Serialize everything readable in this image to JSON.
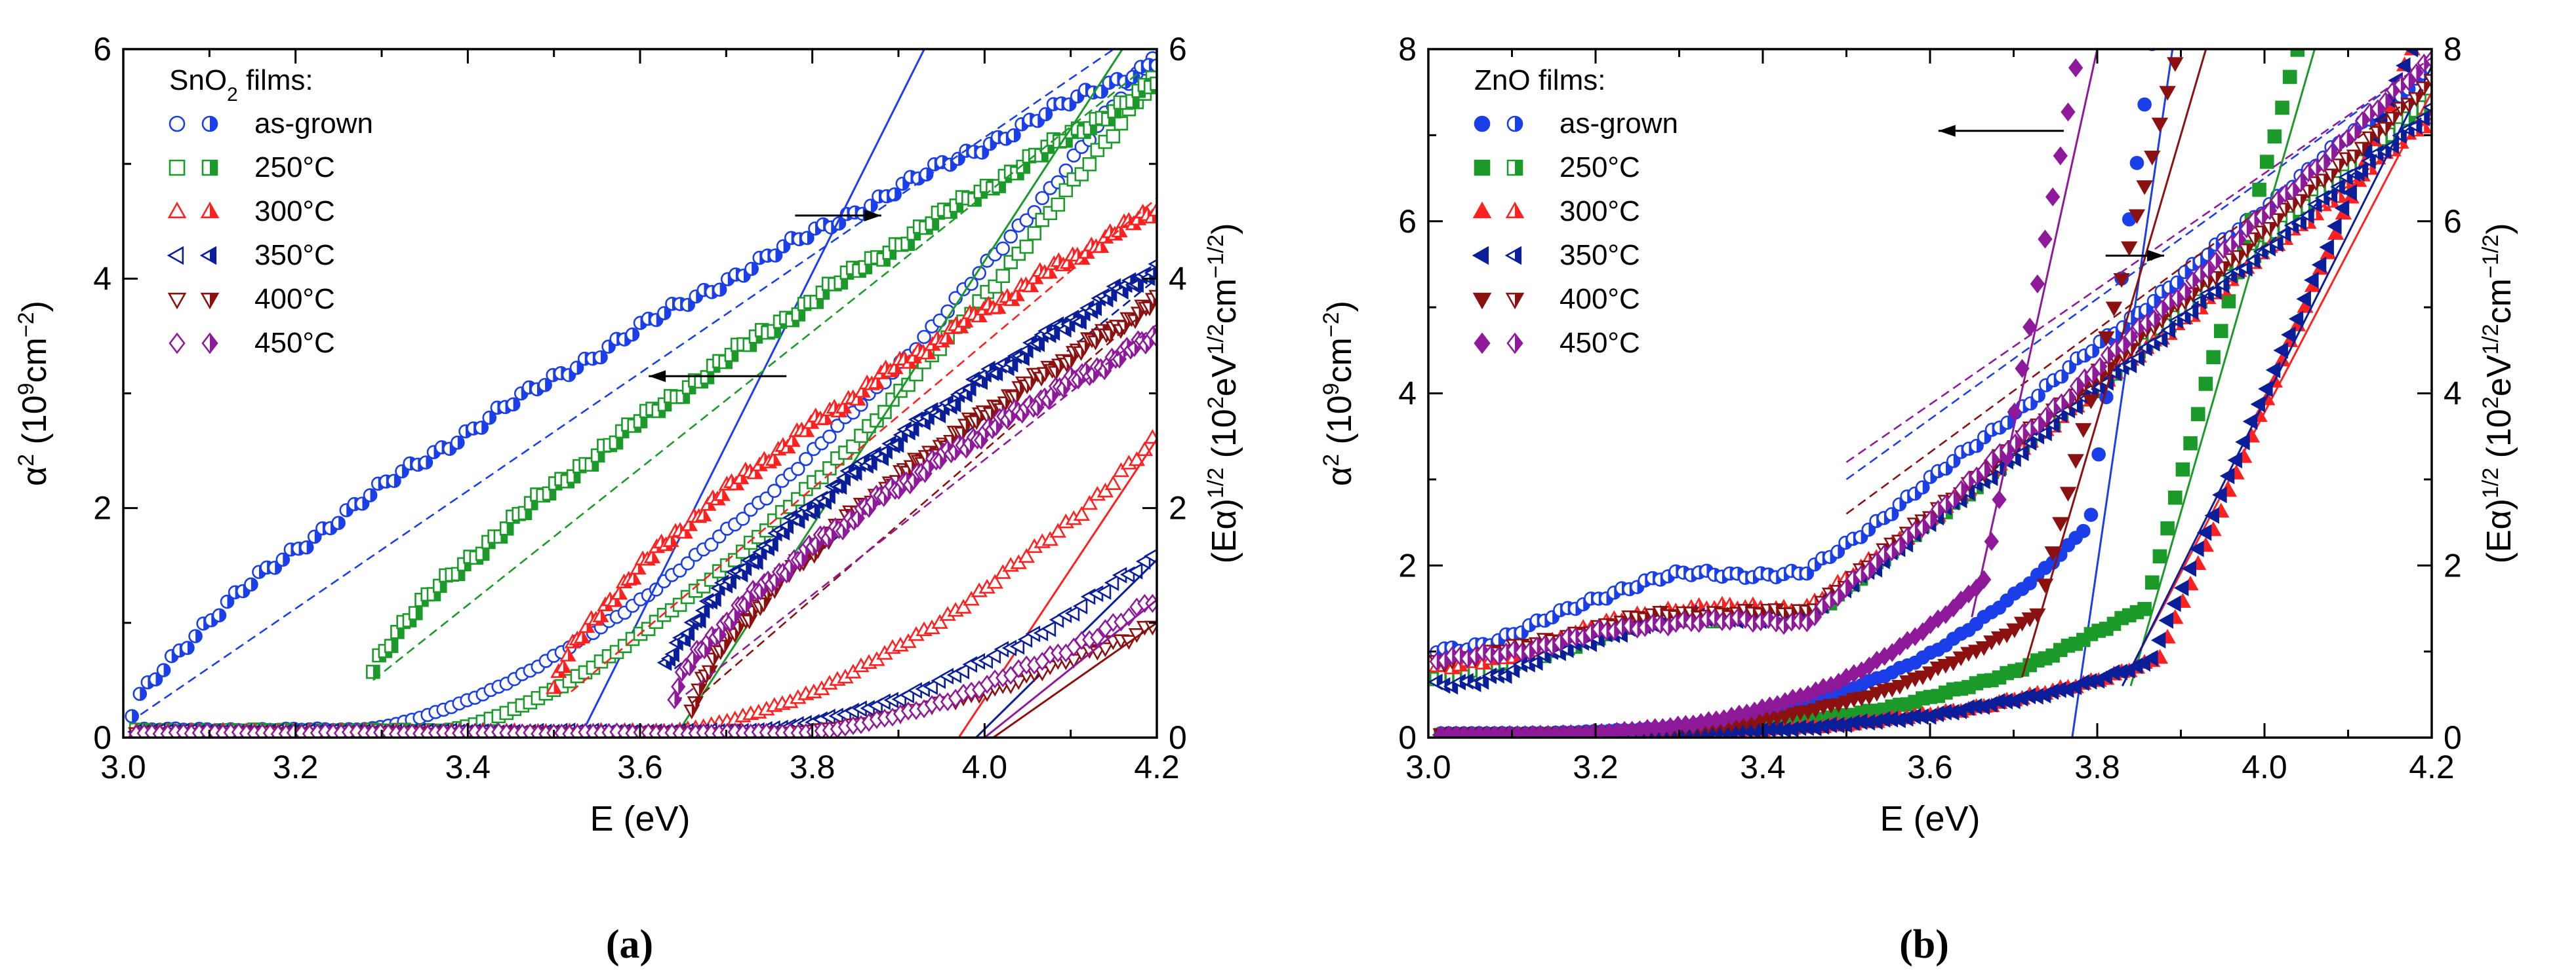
{
  "panel_labels": [
    "(a)",
    "(b)"
  ],
  "chart_data": [
    {
      "type": "scatter",
      "panel": "(a)",
      "title": "",
      "legend_title": "SnO2 films:",
      "legend_title_main": "SnO",
      "legend_title_sub": "2",
      "legend_title_rest": " films:",
      "legend_position": "top-left",
      "xlabel": "E (eV)",
      "ylabel_left": "α² (10⁹cm⁻²)",
      "ylabel_left_parts": [
        "α",
        "2",
        " (10",
        "9",
        "cm",
        "−2",
        ")"
      ],
      "ylabel_right": "(Eα)^1/2 (10²eV^1/2cm^-1/2)",
      "ylabel_right_parts": [
        "(Eα)",
        "1/2",
        " (10",
        "2",
        "eV",
        "1/2",
        "cm",
        "−1/2",
        ")"
      ],
      "xlim": [
        3.0,
        4.2
      ],
      "ylim_left": [
        0,
        6
      ],
      "ylim_right": [
        0,
        6
      ],
      "xticks": [
        "3.0",
        "3.2",
        "3.4",
        "3.6",
        "3.8",
        "4.0",
        "4.2"
      ],
      "yticks_left": [
        "0",
        "2",
        "4",
        "6"
      ],
      "yticks_right": [
        "0",
        "2",
        "4",
        "6"
      ],
      "marker_style": "open",
      "arrows": [
        {
          "direction": "left",
          "points_to": "left axis (α²)",
          "x_from": 3.77,
          "x_to": 3.61,
          "y": 3.15
        },
        {
          "direction": "right",
          "points_to": "right axis ((Eα)^1/2)",
          "x_from": 3.78,
          "x_to": 3.88,
          "y": 4.55
        }
      ],
      "series": [
        {
          "name": "as-grown",
          "color": "#1a3fe8",
          "marker": "circle",
          "alpha2_onset": 3.27,
          "alpha2_at_4_2": 6.0,
          "alpha2_curve": 1.6,
          "alpha2_tail": 0.07,
          "sqrt_start": 3.01,
          "sqrt_y0": 0.2,
          "sqrt_end_val": 5.9,
          "sqrt_curve": 0.75,
          "fit_alpha2": [
            [
              3.53,
              0.0
            ],
            [
              3.93,
              6.0
            ]
          ],
          "fit_sqrt": [
            [
              3.02,
              0.2
            ],
            [
              4.15,
              6.0
            ]
          ]
        },
        {
          "name": "250°C",
          "color": "#1b9a2a",
          "marker": "square",
          "alpha2_onset": 3.37,
          "alpha2_at_4_2": 5.8,
          "alpha2_curve": 1.5,
          "alpha2_tail": 0.06,
          "sqrt_start": 3.29,
          "sqrt_y0": 0.6,
          "sqrt_end_val": 5.7,
          "sqrt_curve": 0.8,
          "fit_alpha2": [
            [
              3.64,
              0.0
            ],
            [
              4.16,
              6.0
            ]
          ],
          "fit_sqrt": [
            [
              3.29,
              0.5
            ],
            [
              4.18,
              5.8
            ]
          ]
        },
        {
          "name": "300°C",
          "color": "#ff2020",
          "marker": "triangle-up",
          "alpha2_onset": 3.62,
          "alpha2_at_4_2": 2.6,
          "alpha2_curve": 1.7,
          "alpha2_tail": 0.05,
          "sqrt_start": 3.5,
          "sqrt_y0": 0.4,
          "sqrt_end_val": 4.6,
          "sqrt_curve": 0.7,
          "fit_alpha2": [
            [
              3.97,
              0.0
            ],
            [
              4.2,
              2.6
            ]
          ],
          "fit_sqrt": [
            [
              3.52,
              0.4
            ],
            [
              4.2,
              4.7
            ]
          ]
        },
        {
          "name": "350°C",
          "color": "#0a1e9a",
          "marker": "triangle-left",
          "alpha2_onset": 3.7,
          "alpha2_at_4_2": 1.6,
          "alpha2_curve": 1.8,
          "alpha2_tail": 0.05,
          "sqrt_start": 3.63,
          "sqrt_y0": 0.6,
          "sqrt_end_val": 4.1,
          "sqrt_curve": 0.75,
          "fit_alpha2": [
            [
              3.99,
              0.0
            ],
            [
              4.2,
              1.55
            ]
          ],
          "fit_sqrt": [
            [
              3.64,
              0.6
            ],
            [
              4.2,
              4.0
            ]
          ]
        },
        {
          "name": "400°C",
          "color": "#8b1010",
          "marker": "triangle-down",
          "alpha2_onset": 3.76,
          "alpha2_at_4_2": 1.0,
          "alpha2_curve": 1.6,
          "alpha2_tail": 0.04,
          "sqrt_start": 3.66,
          "sqrt_y0": 0.25,
          "sqrt_end_val": 3.8,
          "sqrt_curve": 0.7,
          "fit_alpha2": [
            [
              4.01,
              0.0
            ],
            [
              4.2,
              1.0
            ]
          ],
          "fit_sqrt": [
            [
              3.66,
              0.3
            ],
            [
              4.2,
              3.8
            ]
          ]
        },
        {
          "name": "450°C",
          "color": "#8e1a9a",
          "marker": "diamond",
          "alpha2_onset": 3.78,
          "alpha2_at_4_2": 1.2,
          "alpha2_curve": 1.6,
          "alpha2_tail": 0.04,
          "sqrt_start": 3.64,
          "sqrt_y0": 0.35,
          "sqrt_end_val": 3.5,
          "sqrt_curve": 0.7,
          "fit_alpha2": [
            [
              4.0,
              0.0
            ],
            [
              4.2,
              1.2
            ]
          ],
          "fit_sqrt": [
            [
              3.64,
              0.3
            ],
            [
              4.2,
              3.6
            ]
          ]
        }
      ]
    },
    {
      "type": "scatter",
      "panel": "(b)",
      "title": "",
      "legend_title": "ZnO films:",
      "legend_position": "top-left",
      "xlabel": "E (eV)",
      "ylabel_left": "α² (10⁹cm⁻²)",
      "ylabel_left_parts": [
        "α",
        "2",
        " (10",
        "9",
        "cm",
        "−2",
        ")"
      ],
      "ylabel_right": "(Eα)^1/2 (10²eV^1/2cm^-1/2)",
      "ylabel_right_parts": [
        "(Eα)",
        "1/2",
        " (10",
        "2",
        "eV",
        "1/2",
        "cm",
        "−1/2",
        ")"
      ],
      "xlim": [
        3.0,
        4.2
      ],
      "ylim_left": [
        0,
        8
      ],
      "ylim_right": [
        0,
        8
      ],
      "xticks": [
        "3.0",
        "3.2",
        "3.4",
        "3.6",
        "3.8",
        "4.0",
        "4.2"
      ],
      "yticks_left": [
        "0",
        "2",
        "4",
        "6",
        "8"
      ],
      "yticks_right": [
        "0",
        "2",
        "4",
        "6",
        "8"
      ],
      "marker_style": "filled",
      "arrows": [
        {
          "direction": "left",
          "points_to": "left axis (α²)",
          "x_from": 3.76,
          "x_to": 3.61,
          "y": 7.05
        },
        {
          "direction": "right",
          "points_to": "right axis ((Eα)^1/2)",
          "x_from": 3.81,
          "x_to": 3.88,
          "y": 5.6
        }
      ],
      "series": [
        {
          "name": "as-grown",
          "color": "#1a3fe8",
          "marker": "circle",
          "a_tail_start": 0.05,
          "a_tail_end": 2.6,
          "a_knee": 3.8,
          "a_steep_x0": 3.77,
          "a_steep_x1": 3.88,
          "sqrt_y0": 1.0,
          "sqrt_mid": 1.9,
          "sqrt_end": 7.8,
          "fit_alpha2": [
            [
              3.77,
              0.0
            ],
            [
              3.89,
              8.0
            ]
          ],
          "fit_sqrt": [
            [
              3.5,
              3.0
            ],
            [
              4.2,
              7.9
            ]
          ]
        },
        {
          "name": "250°C",
          "color": "#1b9a2a",
          "marker": "square",
          "a_tail_start": 0.03,
          "a_tail_end": 1.5,
          "a_knee": 3.85,
          "a_steep_x0": 3.83,
          "a_steep_x1": 4.06,
          "sqrt_y0": 0.7,
          "sqrt_mid": 1.4,
          "sqrt_end": 7.4,
          "fit_alpha2": [
            [
              3.84,
              0.6
            ],
            [
              4.06,
              8.0
            ]
          ],
          "fit_sqrt": [
            [
              3.5,
              1.7
            ],
            [
              4.2,
              7.3
            ]
          ]
        },
        {
          "name": "300°C",
          "color": "#ff2020",
          "marker": "triangle-up",
          "a_tail_start": 0.03,
          "a_tail_end": 1.0,
          "a_knee": 3.9,
          "a_steep_x0": 3.85,
          "a_steep_x1": 4.2,
          "sqrt_y0": 0.8,
          "sqrt_mid": 1.5,
          "sqrt_end": 7.2,
          "fit_alpha2": [
            [
              3.84,
              0.8
            ],
            [
              4.2,
              7.5
            ]
          ],
          "fit_sqrt": [
            [
              3.5,
              1.7
            ],
            [
              4.2,
              7.2
            ]
          ]
        },
        {
          "name": "350°C",
          "color": "#0a1e9a",
          "marker": "triangle-left",
          "a_tail_start": 0.03,
          "a_tail_end": 1.0,
          "a_knee": 3.9,
          "a_steep_x0": 3.84,
          "a_steep_x1": 4.2,
          "sqrt_y0": 0.6,
          "sqrt_mid": 1.4,
          "sqrt_end": 7.3,
          "fit_alpha2": [
            [
              3.83,
              0.6
            ],
            [
              4.2,
              7.8
            ]
          ],
          "fit_sqrt": [
            [
              3.5,
              1.7
            ],
            [
              4.2,
              7.3
            ]
          ]
        },
        {
          "name": "400°C",
          "color": "#8b1010",
          "marker": "triangle-down",
          "a_tail_start": 0.04,
          "a_tail_end": 2.0,
          "a_knee": 3.8,
          "a_steep_x0": 3.71,
          "a_steep_x1": 3.92,
          "sqrt_y0": 0.9,
          "sqrt_mid": 1.45,
          "sqrt_end": 7.6,
          "fit_alpha2": [
            [
              3.71,
              0.7
            ],
            [
              3.93,
              8.0
            ]
          ],
          "fit_sqrt": [
            [
              3.5,
              2.6
            ],
            [
              4.2,
              7.6
            ]
          ]
        },
        {
          "name": "450°C",
          "color": "#8e1a9a",
          "marker": "diamond",
          "a_tail_start": 0.03,
          "a_tail_end": 2.8,
          "a_knee": 3.75,
          "a_steep_x0": 3.65,
          "a_steep_x1": 3.8,
          "sqrt_y0": 0.9,
          "sqrt_mid": 1.35,
          "sqrt_end": 7.9,
          "fit_alpha2": [
            [
              3.65,
              1.4
            ],
            [
              3.8,
              8.0
            ]
          ],
          "fit_sqrt": [
            [
              3.5,
              3.2
            ],
            [
              4.2,
              7.9
            ]
          ]
        }
      ]
    }
  ]
}
